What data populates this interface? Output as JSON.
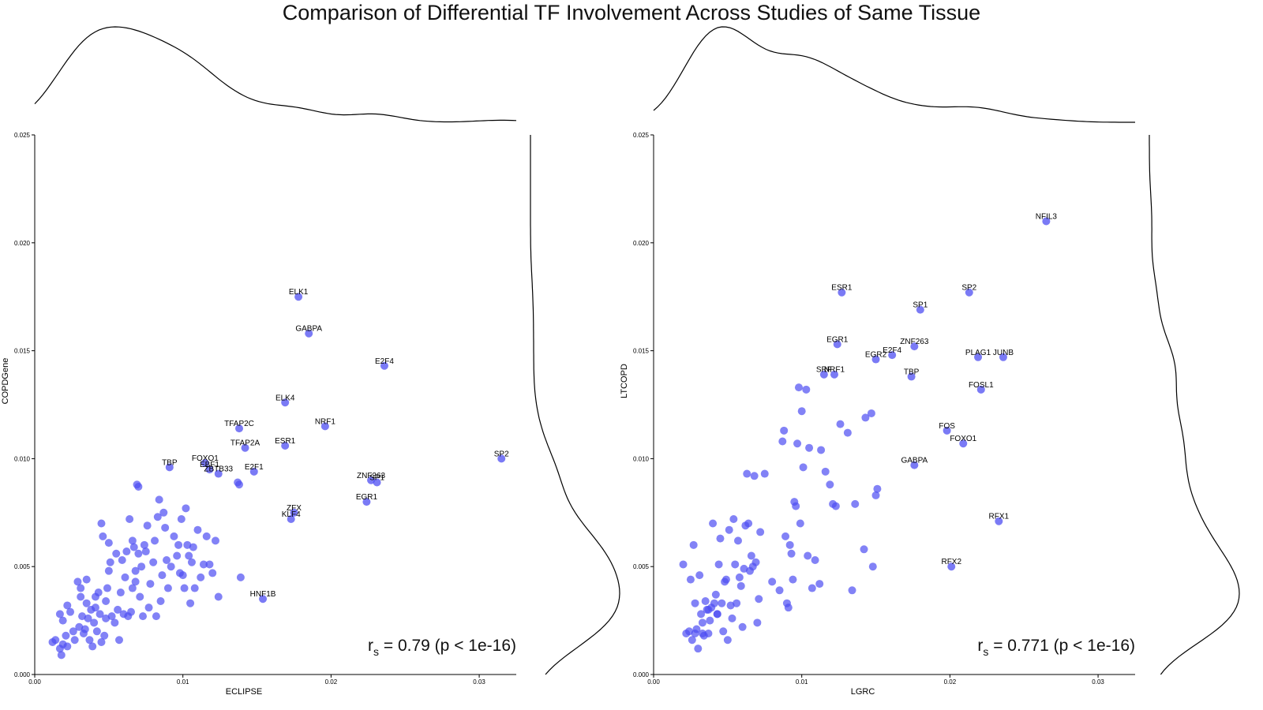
{
  "title": "Comparison of Differential TF Involvement Across Studies of Same Tissue",
  "chart_data": [
    {
      "type": "scatter",
      "xlabel": "ECLIPSE",
      "ylabel": "COPDGene",
      "xlim": [
        0,
        0.0325
      ],
      "ylim": [
        0,
        0.025
      ],
      "xticks": [
        "0.00",
        "0.01",
        "0.02",
        "0.03"
      ],
      "yticks": [
        "0.000",
        "0.005",
        "0.010",
        "0.015",
        "0.020",
        "0.025"
      ],
      "xtick_values": [
        0,
        0.01,
        0.02,
        0.03
      ],
      "ytick_values": [
        0,
        0.005,
        0.01,
        0.015,
        0.02,
        0.025
      ],
      "annotation": {
        "r": "r",
        "sub": "s",
        "text": " = 0.79 (p < 1e-16)"
      },
      "marginal_densities": true,
      "point_color": "#4d4df2",
      "labeled_points": [
        {
          "label": "ELK1",
          "x": 0.0178,
          "y": 0.0175
        },
        {
          "label": "GABPA",
          "x": 0.0185,
          "y": 0.0158
        },
        {
          "label": "E2F4",
          "x": 0.0236,
          "y": 0.0143
        },
        {
          "label": "ELK4",
          "x": 0.0169,
          "y": 0.0126
        },
        {
          "label": "NRF1",
          "x": 0.0196,
          "y": 0.0115
        },
        {
          "label": "TFAP2C",
          "x": 0.0138,
          "y": 0.0114
        },
        {
          "label": "TFAP2A",
          "x": 0.0142,
          "y": 0.0105
        },
        {
          "label": "ESR1",
          "x": 0.0169,
          "y": 0.0106
        },
        {
          "label": "SP2",
          "x": 0.0315,
          "y": 0.01
        },
        {
          "label": "TBP",
          "x": 0.0091,
          "y": 0.0096
        },
        {
          "label": "FOXO1",
          "x": 0.0115,
          "y": 0.0098
        },
        {
          "label": "EBF1",
          "x": 0.0118,
          "y": 0.0095
        },
        {
          "label": "ZBTB33",
          "x": 0.0124,
          "y": 0.0093
        },
        {
          "label": "E2F1",
          "x": 0.0148,
          "y": 0.0094
        },
        {
          "label": "ZNF263",
          "x": 0.0227,
          "y": 0.009
        },
        {
          "label": "SP1",
          "x": 0.0231,
          "y": 0.0089
        },
        {
          "label": "EGR1",
          "x": 0.0224,
          "y": 0.008
        },
        {
          "label": "ZFX",
          "x": 0.0175,
          "y": 0.0075
        },
        {
          "label": "KLF4",
          "x": 0.0173,
          "y": 0.0072
        },
        {
          "label": "HNF1B",
          "x": 0.0154,
          "y": 0.0035
        }
      ],
      "points": [
        [
          0.0012,
          0.0015
        ],
        [
          0.0014,
          0.0016
        ],
        [
          0.0017,
          0.0012
        ],
        [
          0.0018,
          0.0009
        ],
        [
          0.0019,
          0.0014
        ],
        [
          0.0021,
          0.0018
        ],
        [
          0.0022,
          0.0013
        ],
        [
          0.0017,
          0.0028
        ],
        [
          0.0019,
          0.0025
        ],
        [
          0.0022,
          0.0032
        ],
        [
          0.0024,
          0.0029
        ],
        [
          0.0026,
          0.002
        ],
        [
          0.0027,
          0.0016
        ],
        [
          0.0029,
          0.0043
        ],
        [
          0.003,
          0.0022
        ],
        [
          0.0031,
          0.0036
        ],
        [
          0.0031,
          0.004
        ],
        [
          0.0032,
          0.0027
        ],
        [
          0.0033,
          0.0019
        ],
        [
          0.0034,
          0.0021
        ],
        [
          0.0035,
          0.0033
        ],
        [
          0.0035,
          0.0044
        ],
        [
          0.0036,
          0.0026
        ],
        [
          0.0037,
          0.0016
        ],
        [
          0.0038,
          0.003
        ],
        [
          0.0039,
          0.0013
        ],
        [
          0.004,
          0.0024
        ],
        [
          0.0041,
          0.0036
        ],
        [
          0.0041,
          0.0031
        ],
        [
          0.0042,
          0.002
        ],
        [
          0.0043,
          0.0038
        ],
        [
          0.0044,
          0.0028
        ],
        [
          0.0045,
          0.0015
        ],
        [
          0.0045,
          0.007
        ],
        [
          0.0046,
          0.0064
        ],
        [
          0.0047,
          0.0018
        ],
        [
          0.0048,
          0.0034
        ],
        [
          0.0048,
          0.0026
        ],
        [
          0.0049,
          0.004
        ],
        [
          0.005,
          0.0061
        ],
        [
          0.005,
          0.0048
        ],
        [
          0.0051,
          0.0052
        ],
        [
          0.0052,
          0.0027
        ],
        [
          0.0054,
          0.0024
        ],
        [
          0.0055,
          0.0056
        ],
        [
          0.0056,
          0.003
        ],
        [
          0.0057,
          0.0016
        ],
        [
          0.0058,
          0.0038
        ],
        [
          0.0059,
          0.0053
        ],
        [
          0.006,
          0.0028
        ],
        [
          0.0061,
          0.0045
        ],
        [
          0.0062,
          0.0057
        ],
        [
          0.0063,
          0.0027
        ],
        [
          0.0064,
          0.0072
        ],
        [
          0.0065,
          0.0029
        ],
        [
          0.0066,
          0.004
        ],
        [
          0.0066,
          0.0062
        ],
        [
          0.0067,
          0.0059
        ],
        [
          0.0068,
          0.0048
        ],
        [
          0.0068,
          0.0043
        ],
        [
          0.0069,
          0.0088
        ],
        [
          0.007,
          0.0056
        ],
        [
          0.007,
          0.0087
        ],
        [
          0.0071,
          0.0036
        ],
        [
          0.0072,
          0.005
        ],
        [
          0.0073,
          0.0027
        ],
        [
          0.0074,
          0.006
        ],
        [
          0.0075,
          0.0057
        ],
        [
          0.0076,
          0.0069
        ],
        [
          0.0077,
          0.0031
        ],
        [
          0.0078,
          0.0042
        ],
        [
          0.008,
          0.0052
        ],
        [
          0.0081,
          0.0062
        ],
        [
          0.0082,
          0.0027
        ],
        [
          0.0083,
          0.0073
        ],
        [
          0.0084,
          0.0081
        ],
        [
          0.0085,
          0.0034
        ],
        [
          0.0086,
          0.0046
        ],
        [
          0.0087,
          0.0075
        ],
        [
          0.0088,
          0.0068
        ],
        [
          0.0089,
          0.0053
        ],
        [
          0.009,
          0.004
        ],
        [
          0.0092,
          0.005
        ],
        [
          0.0094,
          0.0064
        ],
        [
          0.0096,
          0.0055
        ],
        [
          0.0097,
          0.006
        ],
        [
          0.0098,
          0.0047
        ],
        [
          0.0099,
          0.0072
        ],
        [
          0.01,
          0.0046
        ],
        [
          0.0101,
          0.004
        ],
        [
          0.0102,
          0.0077
        ],
        [
          0.0103,
          0.006
        ],
        [
          0.0104,
          0.0055
        ],
        [
          0.0105,
          0.0033
        ],
        [
          0.0106,
          0.0052
        ],
        [
          0.0107,
          0.0059
        ],
        [
          0.0108,
          0.004
        ],
        [
          0.011,
          0.0067
        ],
        [
          0.0112,
          0.0045
        ],
        [
          0.0114,
          0.0051
        ],
        [
          0.0116,
          0.0064
        ],
        [
          0.0118,
          0.0051
        ],
        [
          0.012,
          0.0047
        ],
        [
          0.0122,
          0.0062
        ],
        [
          0.0124,
          0.0036
        ],
        [
          0.0138,
          0.0088
        ],
        [
          0.0139,
          0.0045
        ],
        [
          0.0137,
          0.0089
        ]
      ]
    },
    {
      "type": "scatter",
      "xlabel": "LGRC",
      "ylabel": "LTCOPD",
      "xlim": [
        0,
        0.0325
      ],
      "ylim": [
        0,
        0.025
      ],
      "xticks": [
        "0.00",
        "0.01",
        "0.02",
        "0.03"
      ],
      "yticks": [
        "0.000",
        "0.005",
        "0.010",
        "0.015",
        "0.020",
        "0.025"
      ],
      "xtick_values": [
        0,
        0.01,
        0.02,
        0.03
      ],
      "ytick_values": [
        0,
        0.005,
        0.01,
        0.015,
        0.02,
        0.025
      ],
      "annotation": {
        "r": "r",
        "sub": "s",
        "text": " = 0.771 (p < 1e-16)"
      },
      "marginal_densities": true,
      "point_color": "#4d4df2",
      "labeled_points": [
        {
          "label": "NFIL3",
          "x": 0.0265,
          "y": 0.021
        },
        {
          "label": "ESR1",
          "x": 0.0127,
          "y": 0.0177
        },
        {
          "label": "SP2",
          "x": 0.0213,
          "y": 0.0177
        },
        {
          "label": "SP1",
          "x": 0.018,
          "y": 0.0169
        },
        {
          "label": "EGR1",
          "x": 0.0124,
          "y": 0.0153
        },
        {
          "label": "ZNF263",
          "x": 0.0176,
          "y": 0.0152
        },
        {
          "label": "E2F4",
          "x": 0.0161,
          "y": 0.0148
        },
        {
          "label": "EGR2",
          "x": 0.015,
          "y": 0.0146
        },
        {
          "label": "PLAG1",
          "x": 0.0219,
          "y": 0.0147
        },
        {
          "label": "JUNB",
          "x": 0.0236,
          "y": 0.0147
        },
        {
          "label": "SRF",
          "x": 0.0115,
          "y": 0.0139
        },
        {
          "label": "NRF1",
          "x": 0.0122,
          "y": 0.0139
        },
        {
          "label": "TBP",
          "x": 0.0174,
          "y": 0.0138
        },
        {
          "label": "FOSL1",
          "x": 0.0221,
          "y": 0.0132
        },
        {
          "label": "FOS",
          "x": 0.0198,
          "y": 0.0113
        },
        {
          "label": "FOXO1",
          "x": 0.0209,
          "y": 0.0107
        },
        {
          "label": "GABPA",
          "x": 0.0176,
          "y": 0.0097
        },
        {
          "label": "RFX1",
          "x": 0.0233,
          "y": 0.0071
        },
        {
          "label": "RFX2",
          "x": 0.0201,
          "y": 0.005
        }
      ],
      "points": [
        [
          0.002,
          0.0051
        ],
        [
          0.0022,
          0.0019
        ],
        [
          0.0024,
          0.002
        ],
        [
          0.0025,
          0.0044
        ],
        [
          0.0026,
          0.0016
        ],
        [
          0.0027,
          0.006
        ],
        [
          0.0028,
          0.0033
        ],
        [
          0.0029,
          0.0021
        ],
        [
          0.003,
          0.0012
        ],
        [
          0.0031,
          0.0046
        ],
        [
          0.0032,
          0.0028
        ],
        [
          0.0033,
          0.0024
        ],
        [
          0.0034,
          0.0018
        ],
        [
          0.0035,
          0.0034
        ],
        [
          0.0036,
          0.003
        ],
        [
          0.0037,
          0.0019
        ],
        [
          0.0038,
          0.0025
        ],
        [
          0.0039,
          0.0031
        ],
        [
          0.004,
          0.007
        ],
        [
          0.0041,
          0.0033
        ],
        [
          0.0042,
          0.0037
        ],
        [
          0.0043,
          0.0028
        ],
        [
          0.0044,
          0.0051
        ],
        [
          0.0045,
          0.0063
        ],
        [
          0.0046,
          0.0033
        ],
        [
          0.0047,
          0.002
        ],
        [
          0.0048,
          0.0043
        ],
        [
          0.0049,
          0.0044
        ],
        [
          0.005,
          0.0016
        ],
        [
          0.0051,
          0.0067
        ],
        [
          0.0052,
          0.0032
        ],
        [
          0.0053,
          0.0026
        ],
        [
          0.0054,
          0.0072
        ],
        [
          0.0055,
          0.0051
        ],
        [
          0.0056,
          0.0033
        ],
        [
          0.0057,
          0.0062
        ],
        [
          0.0058,
          0.0045
        ],
        [
          0.0059,
          0.0041
        ],
        [
          0.006,
          0.0022
        ],
        [
          0.0061,
          0.0049
        ],
        [
          0.0062,
          0.0069
        ],
        [
          0.0063,
          0.0093
        ],
        [
          0.0064,
          0.007
        ],
        [
          0.0065,
          0.0048
        ],
        [
          0.0066,
          0.0055
        ],
        [
          0.0067,
          0.005
        ],
        [
          0.0068,
          0.0092
        ],
        [
          0.0069,
          0.0052
        ],
        [
          0.007,
          0.0024
        ],
        [
          0.0071,
          0.0035
        ],
        [
          0.0072,
          0.0066
        ],
        [
          0.0075,
          0.0093
        ],
        [
          0.008,
          0.0043
        ],
        [
          0.0085,
          0.0039
        ],
        [
          0.0087,
          0.0108
        ],
        [
          0.0088,
          0.0113
        ],
        [
          0.0089,
          0.0064
        ],
        [
          0.009,
          0.0033
        ],
        [
          0.0091,
          0.0031
        ],
        [
          0.0092,
          0.006
        ],
        [
          0.0093,
          0.0056
        ],
        [
          0.0094,
          0.0044
        ],
        [
          0.0095,
          0.008
        ],
        [
          0.0096,
          0.0078
        ],
        [
          0.0097,
          0.0107
        ],
        [
          0.0098,
          0.0133
        ],
        [
          0.0099,
          0.007
        ],
        [
          0.01,
          0.0122
        ],
        [
          0.0101,
          0.0096
        ],
        [
          0.0103,
          0.0132
        ],
        [
          0.0104,
          0.0055
        ],
        [
          0.0105,
          0.0105
        ],
        [
          0.0107,
          0.004
        ],
        [
          0.0109,
          0.0053
        ],
        [
          0.0112,
          0.0042
        ],
        [
          0.0113,
          0.0104
        ],
        [
          0.0116,
          0.0094
        ],
        [
          0.0119,
          0.0088
        ],
        [
          0.0121,
          0.0079
        ],
        [
          0.0123,
          0.0078
        ],
        [
          0.0126,
          0.0116
        ],
        [
          0.0131,
          0.0112
        ],
        [
          0.0134,
          0.0039
        ],
        [
          0.0136,
          0.0079
        ],
        [
          0.0142,
          0.0058
        ],
        [
          0.0143,
          0.0119
        ],
        [
          0.0147,
          0.0121
        ],
        [
          0.0148,
          0.005
        ],
        [
          0.015,
          0.0083
        ],
        [
          0.0151,
          0.0086
        ],
        [
          0.0028,
          0.0019
        ],
        [
          0.0033,
          0.0019
        ],
        [
          0.0037,
          0.003
        ],
        [
          0.0043,
          0.0028
        ]
      ]
    }
  ]
}
